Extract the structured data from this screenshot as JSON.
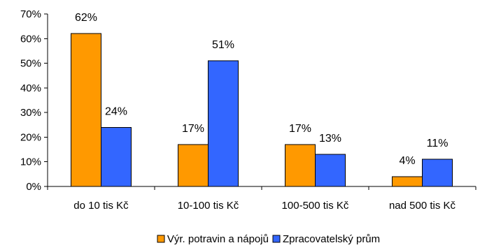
{
  "chart_data": {
    "type": "bar",
    "title": "",
    "xlabel": "",
    "ylabel": "",
    "categories": [
      "do 10 tis Kč",
      "10-100 tis Kč",
      "100-500 tis Kč",
      "nad 500 tis Kč"
    ],
    "series": [
      {
        "name": "Výr. potravin a nápojů",
        "color": "#FF9900",
        "values": [
          62,
          17,
          17,
          4
        ],
        "labels": [
          "62%",
          "17%",
          "17%",
          "4%"
        ]
      },
      {
        "name": "Zpracovatelský prům",
        "color": "#3366FF",
        "values": [
          24,
          51,
          13,
          11
        ],
        "labels": [
          "24%",
          "51%",
          "13%",
          "11%"
        ]
      }
    ],
    "ylim": [
      0,
      70
    ],
    "yticks": [
      0,
      10,
      20,
      30,
      40,
      50,
      60,
      70
    ],
    "ytick_labels": [
      "0%",
      "10%",
      "20%",
      "30%",
      "40%",
      "50%",
      "60%",
      "70%"
    ],
    "grid": false,
    "legend_position": "bottom-center"
  }
}
